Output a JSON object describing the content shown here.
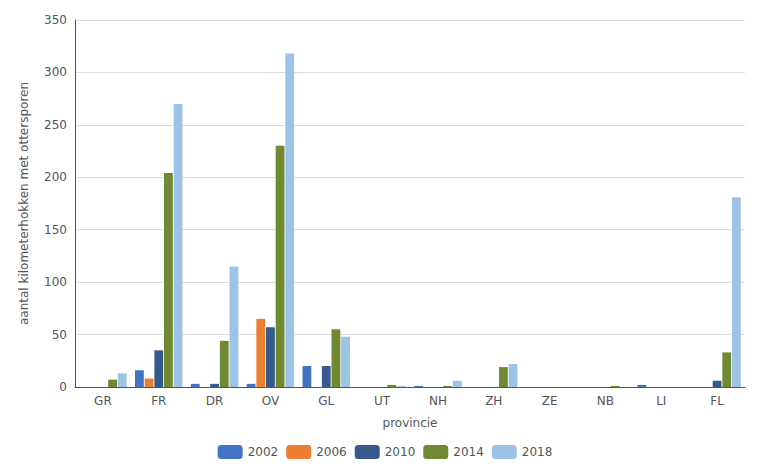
{
  "chart_data": {
    "type": "bar",
    "categories": [
      "GR",
      "FR",
      "DR",
      "OV",
      "GL",
      "UT",
      "NH",
      "ZH",
      "ZE",
      "NB",
      "LI",
      "FL"
    ],
    "series": [
      {
        "name": "2002",
        "color": "#4472C4",
        "values": [
          0,
          16,
          3,
          3,
          20,
          0,
          1,
          0,
          0,
          0,
          2,
          0
        ]
      },
      {
        "name": "2006",
        "color": "#ED7D31",
        "values": [
          0,
          8,
          0,
          65,
          0,
          0,
          0,
          0,
          0,
          0,
          0,
          0
        ]
      },
      {
        "name": "2010",
        "color": "#375A8C",
        "values": [
          0,
          35,
          3,
          57,
          20,
          0,
          0,
          0,
          0,
          0,
          0,
          6
        ]
      },
      {
        "name": "2014",
        "color": "#70882F",
        "values": [
          7,
          204,
          44,
          230,
          55,
          2,
          1,
          19,
          0,
          1,
          0,
          33
        ]
      },
      {
        "name": "2018",
        "color": "#9DC3E6",
        "values": [
          13,
          270,
          115,
          318,
          48,
          1,
          6,
          22,
          0,
          0,
          0,
          181
        ]
      }
    ],
    "xlabel": "provincie",
    "ylabel": "aantal kilometerhokken met ottersporen",
    "ylim": [
      0,
      350
    ],
    "yticks": [
      0,
      50,
      100,
      150,
      200,
      250,
      300,
      350
    ],
    "grid": true,
    "legend": "bottom"
  }
}
